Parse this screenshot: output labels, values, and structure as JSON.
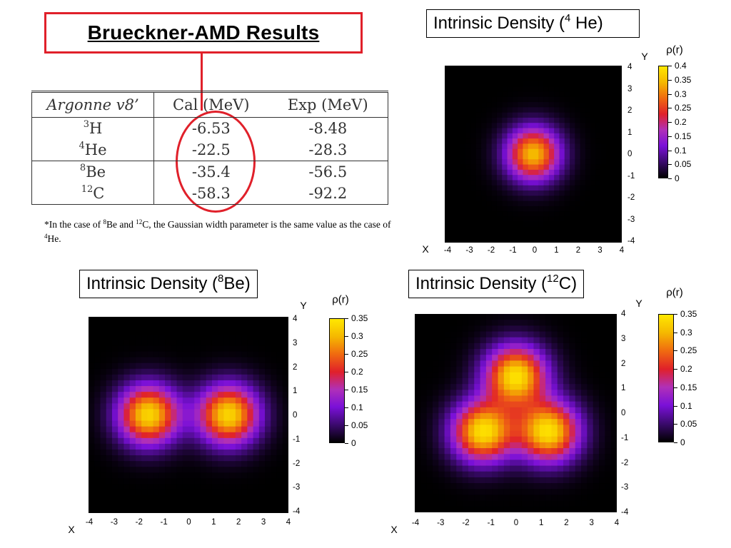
{
  "title": "Brueckner-AMD Results",
  "table": {
    "headers": [
      "Argonne v8’",
      "Cal (MeV)",
      "Exp (MeV)"
    ],
    "rows": [
      {
        "mass": "3",
        "element": "H",
        "cal": "-6.53",
        "exp": "-8.48"
      },
      {
        "mass": "4",
        "element": "He",
        "cal": "-22.5",
        "exp": "-28.3"
      },
      {
        "mass": "8",
        "element": "Be",
        "cal": "-35.4",
        "exp": "-56.5"
      },
      {
        "mass": "12",
        "element": "C",
        "cal": "-58.3",
        "exp": "-92.2"
      }
    ]
  },
  "footnote": {
    "prefix": "*In the case of ",
    "m1": "8",
    "e1": "Be and ",
    "m2": "12",
    "e2": "C, the Gaussian width parameter is the same value as the case of ",
    "m3": "4",
    "e3": "He."
  },
  "panels": {
    "he4": {
      "title_prefix": "Intrinsic Density (",
      "mass": "4",
      "title_suffix": " He)"
    },
    "be8": {
      "title_prefix": "Intrinsic Density (",
      "mass": "8",
      "title_suffix": "Be)"
    },
    "c12": {
      "title_prefix": "Intrinsic Density (",
      "mass": "12",
      "title_suffix": "C)"
    }
  },
  "axis": {
    "x_letter": "X",
    "y_letter": "Y",
    "ticks": [
      "-4",
      "-3",
      "-2",
      "-1",
      "0",
      "1",
      "2",
      "3",
      "4"
    ],
    "ticks_desc": [
      "4",
      "3",
      "2",
      "1",
      "0",
      "-1",
      "-2",
      "-3",
      "-4"
    ],
    "range": [
      -4,
      4
    ]
  },
  "colorbar_title": "ρ(r)",
  "colorbars": {
    "he4": [
      "0.4",
      "0.35",
      "0.3",
      "0.25",
      "0.2",
      "0.15",
      "0.1",
      "0.05",
      "0"
    ],
    "be8": [
      "0.35",
      "0.3",
      "0.25",
      "0.2",
      "0.15",
      "0.1",
      "0.05",
      "0"
    ],
    "c12": [
      "0.35",
      "0.3",
      "0.25",
      "0.2",
      "0.15",
      "0.1",
      "0.05",
      "0"
    ]
  },
  "colors": {
    "highlight": "#e0202a",
    "colormap": [
      "#000000",
      "#3b0a6e",
      "#7a10d8",
      "#b030b8",
      "#e0202a",
      "#f06a10",
      "#f5b800",
      "#ffe800"
    ]
  },
  "chart_data": [
    {
      "type": "heatmap",
      "title": "Intrinsic Density (4 He)",
      "xlabel": "X",
      "ylabel": "Y",
      "zlabel": "ρ(r)",
      "xlim": [
        -4,
        4
      ],
      "ylim": [
        -4,
        4
      ],
      "zlim": [
        0,
        0.4
      ],
      "centers": [
        [
          0,
          0
        ]
      ],
      "peak_density": 0.35
    },
    {
      "type": "heatmap",
      "title": "Intrinsic Density (8Be)",
      "xlabel": "X",
      "ylabel": "Y",
      "zlabel": "ρ(r)",
      "xlim": [
        -4,
        4
      ],
      "ylim": [
        -4,
        4
      ],
      "zlim": [
        0,
        0.35
      ],
      "centers": [
        [
          -1.6,
          0
        ],
        [
          1.6,
          0
        ]
      ],
      "peak_density": 0.33
    },
    {
      "type": "heatmap",
      "title": "Intrinsic Density (12C)",
      "xlabel": "X",
      "ylabel": "Y",
      "zlabel": "ρ(r)",
      "xlim": [
        -4,
        4
      ],
      "ylim": [
        -4,
        4
      ],
      "zlim": [
        0,
        0.35
      ],
      "centers": [
        [
          0,
          1.5
        ],
        [
          -1.3,
          -0.75
        ],
        [
          1.3,
          -0.75
        ]
      ],
      "peak_density": 0.34
    }
  ]
}
